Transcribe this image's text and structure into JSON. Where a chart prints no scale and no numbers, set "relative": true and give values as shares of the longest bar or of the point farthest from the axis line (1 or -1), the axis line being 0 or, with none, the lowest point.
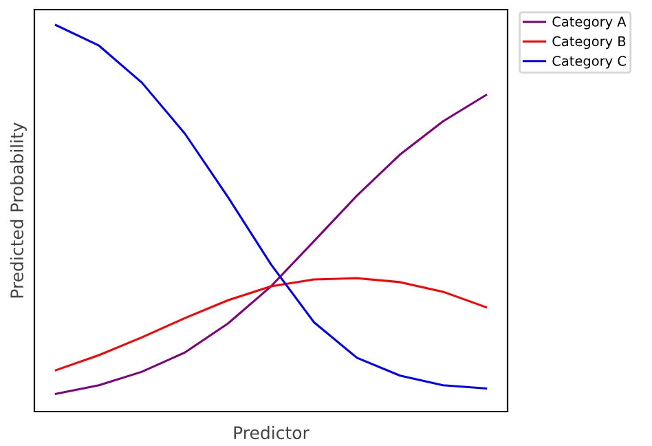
{
  "chart_data": {
    "type": "line",
    "xlabel": "Predictor",
    "ylabel": "Predicted Probability",
    "relative": true,
    "legend": "top right",
    "grid": false,
    "marker": "none",
    "line_style": "solid",
    "categories": [
      null,
      null,
      null,
      null,
      null,
      null,
      null,
      null,
      null,
      null,
      null
    ],
    "series": [
      {
        "name": "Category A",
        "color": "#800080",
        "values": [
          0.046,
          0.068,
          0.103,
          0.153,
          0.228,
          0.324,
          0.441,
          0.559,
          0.665,
          0.751,
          0.819
        ]
      },
      {
        "name": "Category B",
        "color": "#ff0000",
        "values": [
          0.107,
          0.146,
          0.192,
          0.242,
          0.288,
          0.324,
          0.342,
          0.345,
          0.335,
          0.31,
          0.27
        ]
      },
      {
        "name": "Category C",
        "color": "#0000ff",
        "values": [
          1.0,
          0.947,
          0.851,
          0.719,
          0.555,
          0.381,
          0.231,
          0.139,
          0.093,
          0.068,
          0.06
        ]
      }
    ]
  }
}
